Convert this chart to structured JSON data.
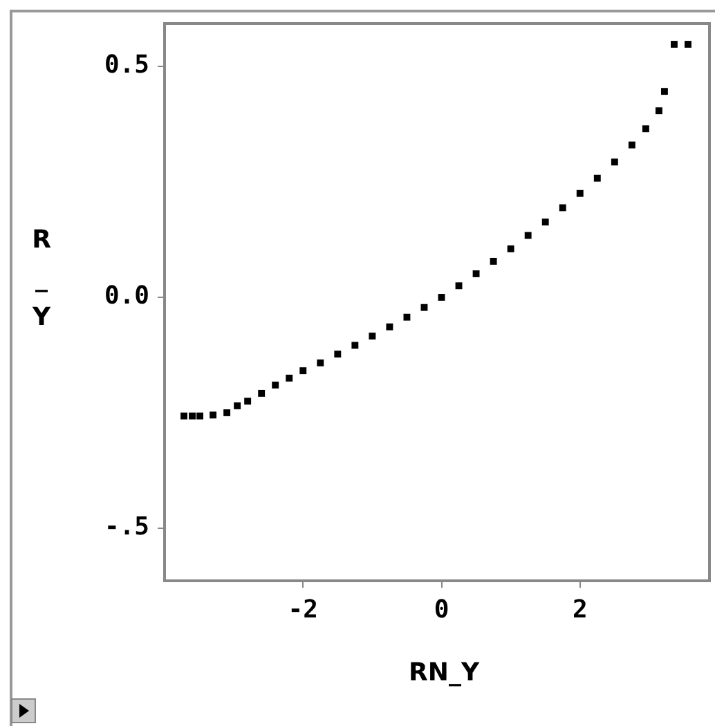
{
  "chart_data": {
    "type": "scatter",
    "xlabel": "RN_Y",
    "ylabel": "R_Y",
    "x": [
      -3.72,
      -3.6,
      -3.49,
      -3.3,
      -3.1,
      -2.95,
      -2.8,
      -2.6,
      -2.4,
      -2.2,
      -2.0,
      -1.75,
      -1.5,
      -1.25,
      -1.0,
      -0.75,
      -0.5,
      -0.25,
      0,
      0.25,
      0.5,
      0.75,
      1.0,
      1.25,
      1.5,
      1.75,
      2.0,
      2.25,
      2.5,
      2.75,
      2.95,
      3.14,
      3.22,
      3.36,
      3.56
    ],
    "series": [
      {
        "color": "#000000",
        "values": [
          -0.257,
          -0.257,
          -0.257,
          -0.255,
          -0.25,
          -0.235,
          -0.225,
          -0.208,
          -0.19,
          -0.175,
          -0.159,
          -0.142,
          -0.123,
          -0.104,
          -0.084,
          -0.064,
          -0.043,
          -0.022,
          0,
          0.025,
          0.051,
          0.078,
          0.105,
          0.134,
          0.163,
          0.194,
          0.225,
          0.258,
          0.293,
          0.33,
          0.365,
          0.404,
          0.446,
          0.548,
          0.548
        ]
      }
    ],
    "xlim": [
      -4.0,
      3.87
    ],
    "xticks": [
      -2,
      0,
      2
    ],
    "ylim": [
      -0.614,
      0.593
    ],
    "yticks": [
      {
        "value": 0.5,
        "label": "0.5"
      },
      {
        "value": 0,
        "label": "0.0"
      },
      {
        "value": -0.5,
        "label": "-.5"
      }
    ],
    "grid": false,
    "legend": false,
    "marker": "square"
  }
}
